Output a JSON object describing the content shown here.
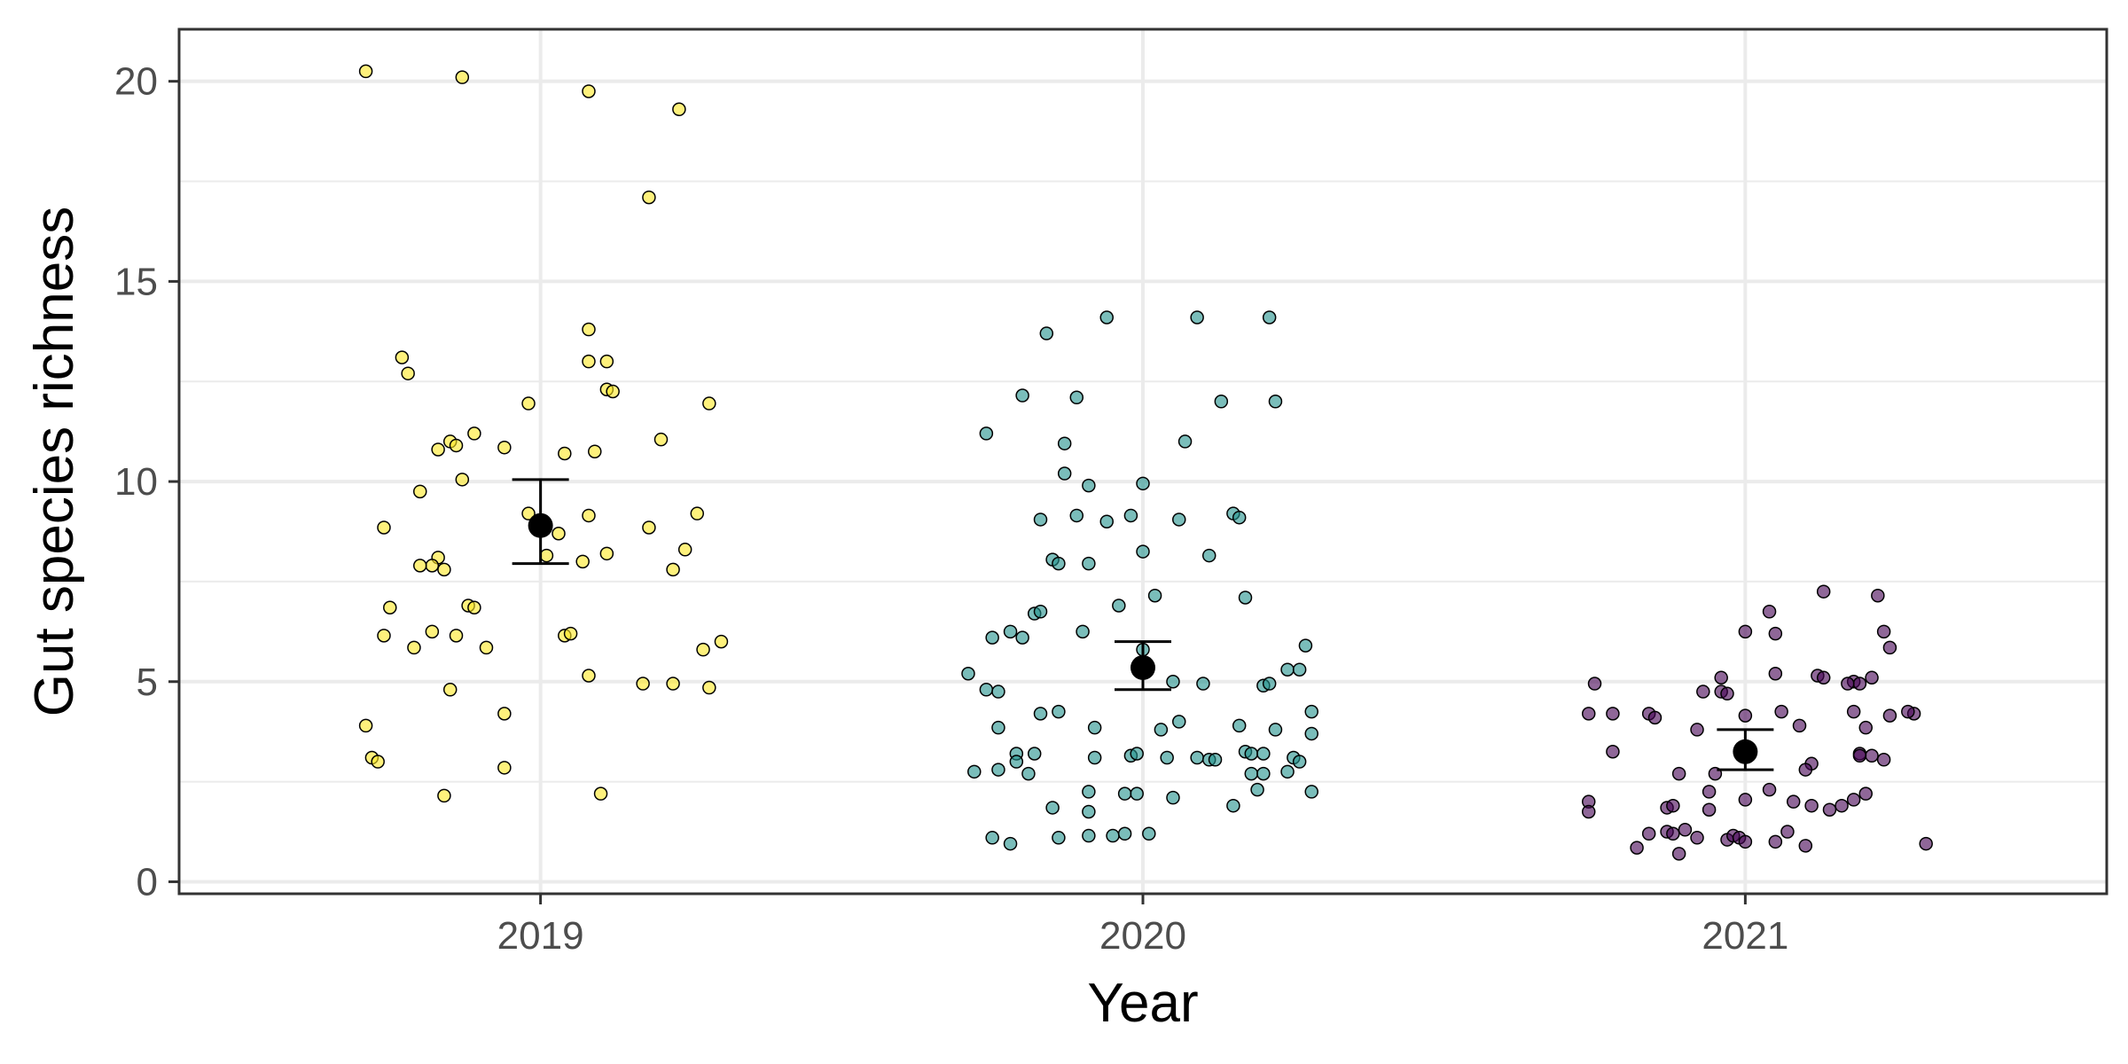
{
  "chart_data": {
    "type": "scatter",
    "title": "",
    "xlabel": "Year",
    "ylabel": "Gut species richness",
    "categories": [
      "2019",
      "2020",
      "2021"
    ],
    "ylim": [
      -0.3,
      21.3
    ],
    "y_ticks": [
      0,
      5,
      10,
      15,
      20
    ],
    "y_tick_labels": [
      "0",
      "5",
      "10",
      "15",
      "20"
    ],
    "grid": true,
    "legend": "none",
    "series": [
      {
        "category": "2019",
        "color": "#FDE725",
        "mean": 8.9,
        "error_low": 7.95,
        "error_high": 10.05,
        "points": [
          [
            -0.29,
            20.25
          ],
          [
            -0.13,
            20.1
          ],
          [
            0.08,
            19.75
          ],
          [
            0.23,
            19.3
          ],
          [
            0.18,
            17.1
          ],
          [
            -0.23,
            13.1
          ],
          [
            -0.22,
            12.7
          ],
          [
            0.08,
            13.8
          ],
          [
            0.08,
            13.0
          ],
          [
            0.11,
            13.0
          ],
          [
            -0.02,
            11.95
          ],
          [
            0.2,
            11.05
          ],
          [
            0.28,
            11.95
          ],
          [
            0.11,
            12.3
          ],
          [
            0.12,
            12.25
          ],
          [
            -0.11,
            11.2
          ],
          [
            -0.15,
            11.0
          ],
          [
            -0.14,
            10.9
          ],
          [
            -0.17,
            10.8
          ],
          [
            -0.06,
            10.85
          ],
          [
            0.04,
            10.7
          ],
          [
            0.09,
            10.75
          ],
          [
            -0.13,
            10.05
          ],
          [
            -0.2,
            9.75
          ],
          [
            -0.26,
            8.85
          ],
          [
            -0.02,
            9.2
          ],
          [
            0.08,
            9.15
          ],
          [
            0.03,
            8.7
          ],
          [
            0.18,
            8.85
          ],
          [
            0.26,
            9.2
          ],
          [
            0.01,
            8.15
          ],
          [
            0.11,
            8.2
          ],
          [
            0.24,
            8.3
          ],
          [
            -0.17,
            8.1
          ],
          [
            -0.18,
            7.9
          ],
          [
            -0.2,
            7.9
          ],
          [
            -0.16,
            7.8
          ],
          [
            0.07,
            8.0
          ],
          [
            0.22,
            7.8
          ],
          [
            -0.25,
            6.85
          ],
          [
            -0.12,
            6.9
          ],
          [
            -0.11,
            6.85
          ],
          [
            -0.26,
            6.15
          ],
          [
            -0.18,
            6.25
          ],
          [
            -0.14,
            6.15
          ],
          [
            -0.09,
            5.85
          ],
          [
            -0.21,
            5.85
          ],
          [
            0.04,
            6.15
          ],
          [
            0.05,
            6.2
          ],
          [
            0.27,
            5.8
          ],
          [
            0.3,
            6.0
          ],
          [
            0.08,
            5.15
          ],
          [
            0.17,
            4.95
          ],
          [
            0.22,
            4.95
          ],
          [
            0.28,
            4.85
          ],
          [
            -0.15,
            4.8
          ],
          [
            -0.06,
            4.2
          ],
          [
            -0.29,
            3.9
          ],
          [
            -0.28,
            3.1
          ],
          [
            -0.27,
            3.0
          ],
          [
            -0.06,
            2.85
          ],
          [
            -0.16,
            2.15
          ],
          [
            0.1,
            2.2
          ]
        ]
      },
      {
        "category": "2020",
        "color": "#21918C",
        "mean": 5.35,
        "error_low": 4.8,
        "error_high": 6.0,
        "points": [
          [
            -0.06,
            14.1
          ],
          [
            0.09,
            14.1
          ],
          [
            0.21,
            14.1
          ],
          [
            -0.16,
            13.7
          ],
          [
            -0.11,
            12.1
          ],
          [
            -0.2,
            12.15
          ],
          [
            0.13,
            12.0
          ],
          [
            0.22,
            12.0
          ],
          [
            -0.26,
            11.2
          ],
          [
            -0.13,
            10.95
          ],
          [
            0.07,
            11.0
          ],
          [
            -0.13,
            10.2
          ],
          [
            -0.09,
            9.9
          ],
          [
            0.0,
            9.95
          ],
          [
            -0.11,
            9.15
          ],
          [
            -0.06,
            9.0
          ],
          [
            -0.02,
            9.15
          ],
          [
            0.06,
            9.05
          ],
          [
            0.15,
            9.2
          ],
          [
            0.16,
            9.1
          ],
          [
            -0.17,
            9.05
          ],
          [
            -0.15,
            8.05
          ],
          [
            -0.14,
            7.95
          ],
          [
            -0.09,
            7.95
          ],
          [
            0.0,
            8.25
          ],
          [
            0.11,
            8.15
          ],
          [
            0.17,
            7.1
          ],
          [
            -0.04,
            6.9
          ],
          [
            0.02,
            7.15
          ],
          [
            -0.25,
            6.1
          ],
          [
            -0.22,
            6.25
          ],
          [
            -0.2,
            6.1
          ],
          [
            -0.18,
            6.7
          ],
          [
            -0.17,
            6.75
          ],
          [
            -0.1,
            6.25
          ],
          [
            -0.29,
            5.2
          ],
          [
            -0.26,
            4.8
          ],
          [
            -0.24,
            4.75
          ],
          [
            -0.17,
            4.2
          ],
          [
            -0.14,
            4.25
          ],
          [
            0.0,
            5.8
          ],
          [
            0.05,
            5.0
          ],
          [
            0.1,
            4.95
          ],
          [
            0.2,
            4.9
          ],
          [
            0.21,
            4.95
          ],
          [
            0.24,
            5.3
          ],
          [
            0.26,
            5.3
          ],
          [
            0.27,
            5.9
          ],
          [
            0.28,
            4.25
          ],
          [
            0.28,
            3.7
          ],
          [
            -0.24,
            3.85
          ],
          [
            -0.21,
            3.2
          ],
          [
            -0.21,
            3.0
          ],
          [
            -0.18,
            3.2
          ],
          [
            -0.08,
            3.85
          ],
          [
            -0.08,
            3.1
          ],
          [
            -0.02,
            3.15
          ],
          [
            -0.01,
            3.2
          ],
          [
            0.04,
            3.1
          ],
          [
            0.09,
            3.1
          ],
          [
            0.11,
            3.05
          ],
          [
            0.12,
            3.05
          ],
          [
            0.16,
            3.9
          ],
          [
            0.17,
            3.25
          ],
          [
            0.18,
            3.2
          ],
          [
            0.2,
            3.2
          ],
          [
            0.22,
            3.8
          ],
          [
            0.25,
            3.1
          ],
          [
            0.26,
            3.0
          ],
          [
            0.06,
            4.0
          ],
          [
            0.03,
            3.8
          ],
          [
            -0.28,
            2.75
          ],
          [
            -0.24,
            2.8
          ],
          [
            -0.19,
            2.7
          ],
          [
            -0.09,
            2.25
          ],
          [
            -0.09,
            1.75
          ],
          [
            -0.03,
            2.2
          ],
          [
            -0.01,
            2.2
          ],
          [
            0.05,
            2.1
          ],
          [
            0.15,
            1.9
          ],
          [
            0.18,
            2.7
          ],
          [
            0.2,
            2.7
          ],
          [
            0.19,
            2.3
          ],
          [
            0.24,
            2.75
          ],
          [
            0.28,
            2.25
          ],
          [
            -0.25,
            1.1
          ],
          [
            -0.22,
            0.95
          ],
          [
            -0.14,
            1.1
          ],
          [
            -0.09,
            1.15
          ],
          [
            -0.05,
            1.15
          ],
          [
            -0.03,
            1.2
          ],
          [
            0.01,
            1.2
          ],
          [
            -0.15,
            1.85
          ]
        ]
      },
      {
        "category": "2021",
        "color": "#440154",
        "mean": 3.25,
        "error_low": 2.8,
        "error_high": 3.8,
        "points": [
          [
            0.13,
            7.25
          ],
          [
            0.22,
            7.15
          ],
          [
            0.23,
            6.25
          ],
          [
            0.04,
            6.75
          ],
          [
            0.0,
            6.25
          ],
          [
            0.05,
            6.2
          ],
          [
            0.24,
            5.85
          ],
          [
            0.12,
            5.15
          ],
          [
            0.13,
            5.1
          ],
          [
            0.18,
            5.0
          ],
          [
            0.19,
            4.95
          ],
          [
            0.21,
            5.1
          ],
          [
            0.17,
            4.95
          ],
          [
            0.05,
            5.2
          ],
          [
            -0.04,
            5.1
          ],
          [
            -0.25,
            4.95
          ],
          [
            -0.26,
            4.2
          ],
          [
            -0.22,
            4.2
          ],
          [
            -0.16,
            4.2
          ],
          [
            -0.15,
            4.1
          ],
          [
            -0.07,
            4.75
          ],
          [
            -0.04,
            4.75
          ],
          [
            -0.03,
            4.7
          ],
          [
            0.0,
            4.15
          ],
          [
            0.06,
            4.25
          ],
          [
            0.09,
            3.9
          ],
          [
            0.18,
            4.25
          ],
          [
            0.2,
            3.85
          ],
          [
            0.24,
            4.15
          ],
          [
            0.28,
            4.2
          ],
          [
            0.27,
            4.25
          ],
          [
            -0.08,
            3.8
          ],
          [
            -0.22,
            3.25
          ],
          [
            -0.11,
            2.7
          ],
          [
            -0.05,
            2.7
          ],
          [
            -0.06,
            2.25
          ],
          [
            0.04,
            2.3
          ],
          [
            0.11,
            2.95
          ],
          [
            0.1,
            2.8
          ],
          [
            0.19,
            3.2
          ],
          [
            0.21,
            3.15
          ],
          [
            0.23,
            3.05
          ],
          [
            0.19,
            3.15
          ],
          [
            -0.26,
            2.0
          ],
          [
            -0.26,
            1.75
          ],
          [
            -0.13,
            1.85
          ],
          [
            -0.12,
            1.9
          ],
          [
            -0.06,
            1.8
          ],
          [
            0.0,
            2.05
          ],
          [
            0.11,
            1.9
          ],
          [
            0.14,
            1.8
          ],
          [
            0.16,
            1.9
          ],
          [
            0.18,
            2.05
          ],
          [
            0.2,
            2.2
          ],
          [
            -0.16,
            1.2
          ],
          [
            -0.13,
            1.25
          ],
          [
            -0.12,
            1.2
          ],
          [
            -0.1,
            1.3
          ],
          [
            -0.08,
            1.1
          ],
          [
            -0.03,
            1.05
          ],
          [
            -0.02,
            1.15
          ],
          [
            -0.01,
            1.1
          ],
          [
            0.0,
            1.0
          ],
          [
            0.05,
            1.0
          ],
          [
            0.07,
            1.25
          ],
          [
            -0.18,
            0.85
          ],
          [
            -0.11,
            0.7
          ],
          [
            0.1,
            0.9
          ],
          [
            0.3,
            0.95
          ],
          [
            0.08,
            2.0
          ]
        ]
      }
    ]
  }
}
